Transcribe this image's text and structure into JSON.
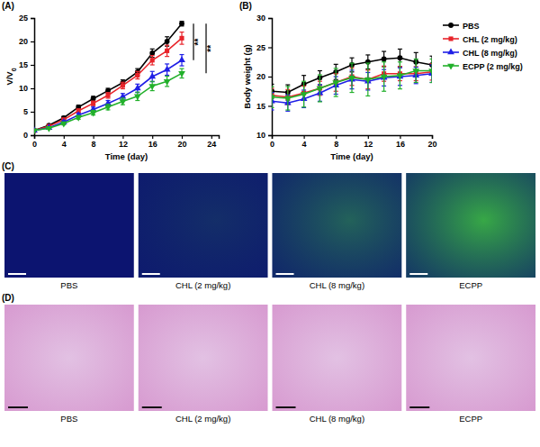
{
  "chart_data": [
    {
      "type": "line",
      "title": "(A)",
      "x_label": "Time (day)",
      "y_label": "V/V0",
      "x": [
        0,
        2,
        4,
        6,
        8,
        10,
        12,
        14,
        16,
        18,
        20
      ],
      "xlim": [
        0,
        25
      ],
      "xticks": [
        0,
        4,
        8,
        12,
        16,
        20,
        24
      ],
      "ylim": [
        0,
        25
      ],
      "yticks": [
        0,
        5,
        10,
        15,
        20,
        25
      ],
      "grid": false,
      "series": [
        {
          "name": "PBS",
          "color": "#000000",
          "marker": "circle",
          "values": [
            1,
            2.1,
            3.7,
            6,
            7.8,
            9.5,
            11.2,
            13.5,
            17.5,
            20,
            23.8
          ],
          "errors": [
            0.1,
            0.2,
            0.3,
            0.4,
            0.5,
            0.5,
            0.6,
            0.7,
            0.9,
            1,
            0.5
          ]
        },
        {
          "name": "CHL (2 mg/kg)",
          "color": "#e8242a",
          "marker": "square",
          "values": [
            1,
            1.9,
            3.3,
            5.2,
            6.8,
            8.5,
            10.6,
            12.8,
            16,
            18,
            20.7
          ],
          "errors": [
            0.1,
            0.2,
            0.3,
            0.4,
            0.5,
            0.6,
            0.7,
            0.8,
            1,
            1.2,
            1.3
          ]
        },
        {
          "name": "CHL (8 mg/kg)",
          "color": "#1f1fe6",
          "marker": "triangle",
          "values": [
            1,
            1.6,
            2.8,
            4.3,
            5.5,
            6.8,
            8.2,
            10,
            12.5,
            14,
            16
          ],
          "errors": [
            0.1,
            0.2,
            0.3,
            0.4,
            0.5,
            0.6,
            0.7,
            0.9,
            1.1,
            1.2,
            1.2
          ]
        },
        {
          "name": "ECPP (2 mg/kg)",
          "color": "#22b02b",
          "marker": "triangle-down",
          "values": [
            1,
            1.5,
            2.5,
            3.8,
            4.8,
            6,
            7.2,
            8.3,
            10.5,
            11.5,
            13.2
          ],
          "errors": [
            0.1,
            0.2,
            0.3,
            0.4,
            0.5,
            0.6,
            0.7,
            0.9,
            1,
            1.1,
            1
          ]
        }
      ],
      "annotations": [
        {
          "text": "**",
          "from": "PBS",
          "to": "CHL (8 mg/kg)"
        },
        {
          "text": "**",
          "from": "PBS",
          "to": "ECPP (2 mg/kg)"
        }
      ]
    },
    {
      "type": "line",
      "title": "(B)",
      "x_label": "Time (day)",
      "y_label": "Body weight (g)",
      "x": [
        0,
        2,
        4,
        6,
        8,
        10,
        12,
        14,
        16,
        18,
        20
      ],
      "xlim": [
        0,
        20
      ],
      "xticks": [
        0,
        4,
        8,
        12,
        16,
        20
      ],
      "ylim": [
        10,
        30
      ],
      "yticks": [
        10,
        15,
        20,
        25,
        30
      ],
      "grid": false,
      "legend": "right",
      "series": [
        {
          "name": "PBS",
          "color": "#000000",
          "marker": "circle",
          "values": [
            17.5,
            17.3,
            18.7,
            19.8,
            20.8,
            22,
            22.5,
            23,
            23.2,
            22.5,
            22
          ],
          "errors": [
            1.2,
            1.3,
            1.5,
            1.2,
            1.3,
            1.2,
            1.2,
            1.3,
            1.5,
            1.6,
            1.5
          ]
        },
        {
          "name": "CHL (2 mg/kg)",
          "color": "#e8242a",
          "marker": "square",
          "values": [
            16.8,
            16.5,
            17.2,
            18,
            19,
            20,
            19.5,
            20.5,
            20.5,
            20.5,
            20.8
          ],
          "errors": [
            1.2,
            1.3,
            1.2,
            1.2,
            1.5,
            1.5,
            1.6,
            1.3,
            1.2,
            1.2,
            1.4
          ]
        },
        {
          "name": "CHL (8 mg/kg)",
          "color": "#1f1fe6",
          "marker": "triangle",
          "values": [
            15.8,
            15.5,
            16.2,
            17.2,
            18.5,
            19.5,
            19.2,
            19.8,
            20,
            20.2,
            20.5
          ],
          "errors": [
            1.5,
            1.4,
            1.5,
            1.4,
            1.5,
            1.6,
            1.5,
            1.4,
            1.5,
            1.4,
            1.5
          ]
        },
        {
          "name": "ECPP (2 mg/kg)",
          "color": "#22b02b",
          "marker": "triangle-down",
          "values": [
            16.5,
            16.3,
            17,
            18,
            19,
            19.8,
            19.5,
            20,
            20.2,
            21,
            21
          ],
          "errors": [
            1.8,
            2,
            2.2,
            2.3,
            2.4,
            2.5,
            2.8,
            2.5,
            2.3,
            2,
            2
          ]
        }
      ]
    }
  ],
  "image_panels": [
    {
      "title": "(C)",
      "labels": [
        "PBS",
        "CHL (2 mg/kg)",
        "CHL (8 mg/kg)",
        "ECPP"
      ]
    },
    {
      "title": "(D)",
      "labels": [
        "PBS",
        "CHL (2 mg/kg)",
        "CHL (8 mg/kg)",
        "ECPP"
      ]
    }
  ]
}
